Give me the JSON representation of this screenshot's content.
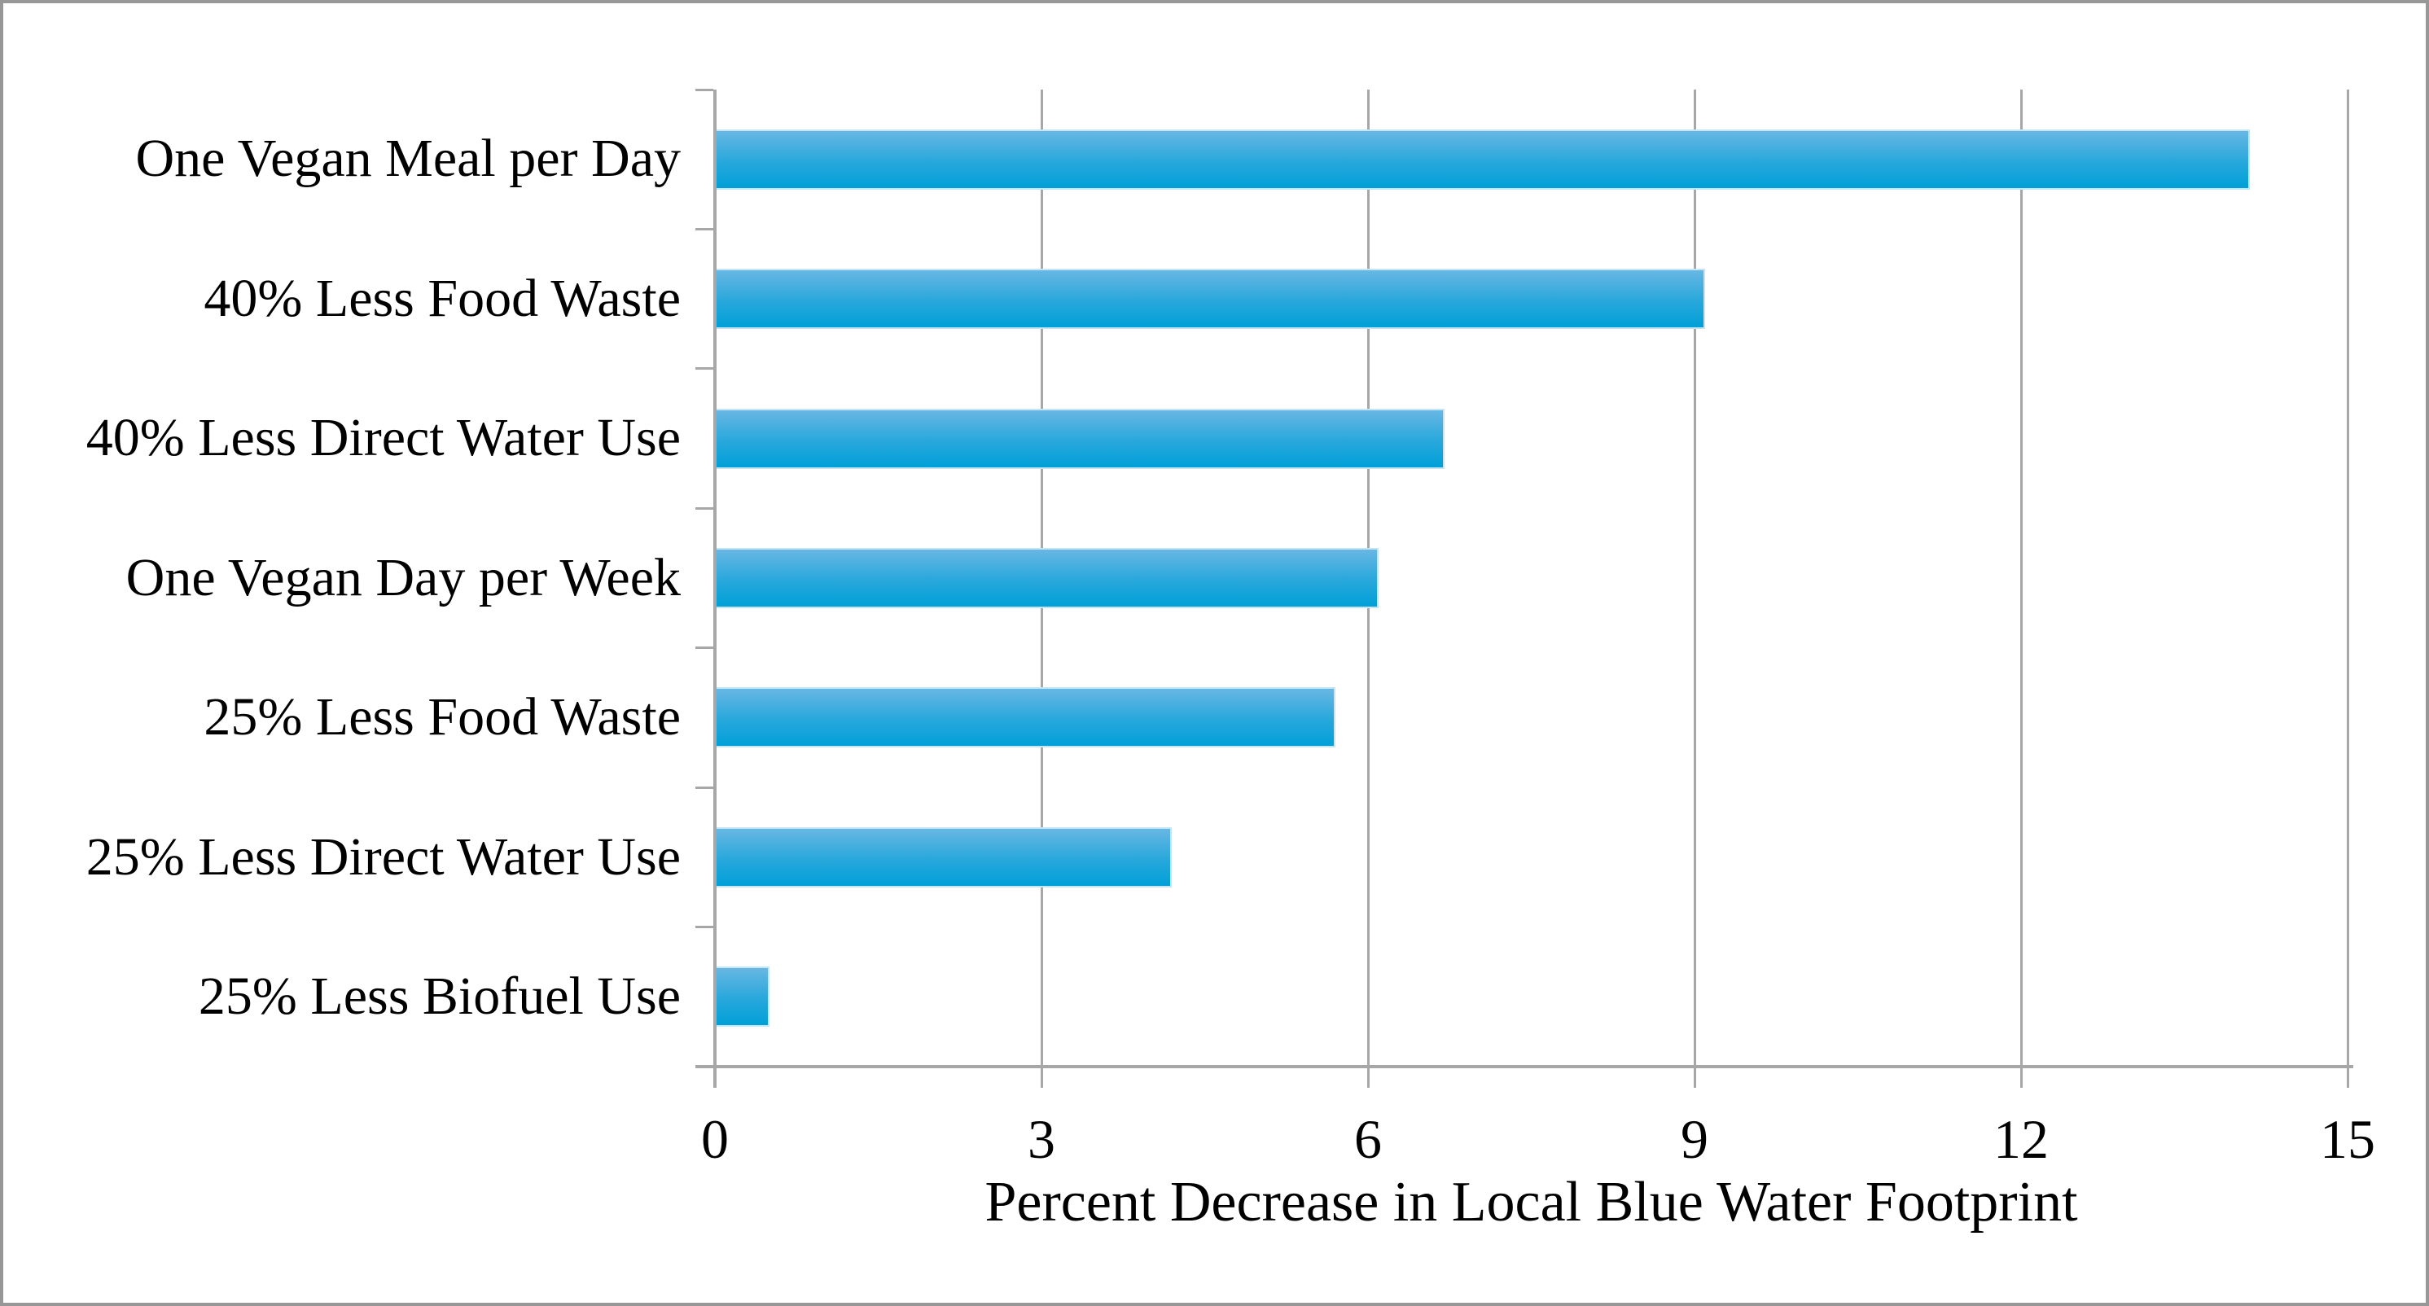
{
  "chart_data": {
    "type": "bar",
    "orientation": "horizontal",
    "title": "",
    "xlabel": "Percent Decrease in Local Blue Water Footprint",
    "ylabel": "",
    "categories": [
      "One Vegan Meal per Day",
      "40% Less Food Waste",
      "40% Less Direct Water Use",
      "One Vegan Day per Week",
      "25% Less Food Waste",
      "25% Less Direct Water Use",
      "25% Less Biofuel Use"
    ],
    "values": [
      14.1,
      9.1,
      6.7,
      6.1,
      5.7,
      4.2,
      0.5
    ],
    "xlim": [
      0,
      15
    ],
    "xticks": [
      0,
      3,
      6,
      9,
      12,
      15
    ],
    "grid": "vertical-gridlines-on",
    "legend": "none",
    "style": {
      "bar_gradient_top": "#68b7e3",
      "bar_gradient_mid": "#2aa8dc",
      "bar_gradient_bottom": "#00a0d8",
      "bar_border": "#c3e5f5",
      "gridline_color": "#a7a7a7",
      "axis_color": "#a7a7a7",
      "text_color": "#000000",
      "figure_border": "#979797",
      "background": "#ffffff"
    }
  }
}
